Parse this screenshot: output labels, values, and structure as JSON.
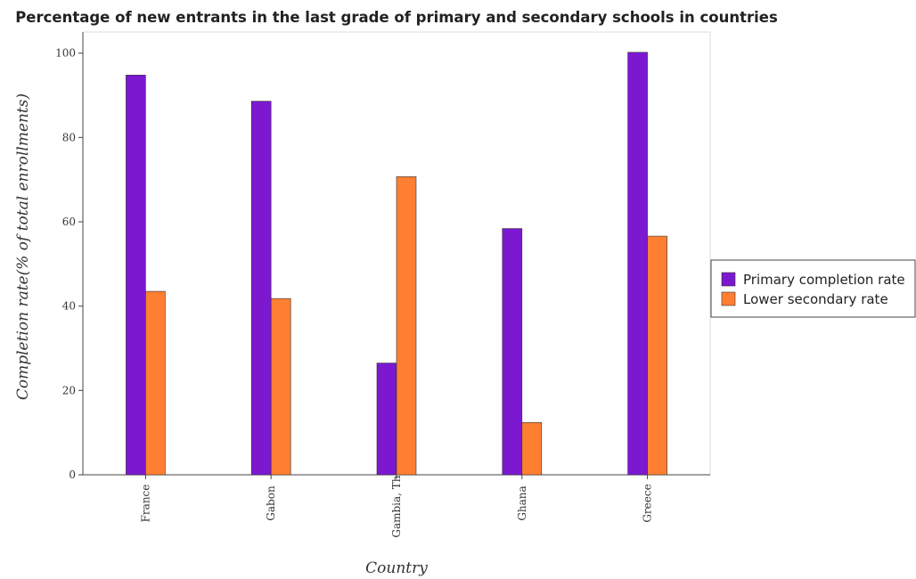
{
  "chart_data": {
    "type": "bar",
    "title": "Percentage of new entrants in the last grade of primary  and secondary schools in countries",
    "xlabel": "Country",
    "ylabel": "Completion rate(% of total enrollments)",
    "categories": [
      "France",
      "Gabon",
      "Gambia, The",
      "Ghana",
      "Greece"
    ],
    "series": [
      {
        "name": "Primary completion rate",
        "color": "#7b18d0",
        "values": [
          94.8,
          88.6,
          26.5,
          58.4,
          100.2
        ]
      },
      {
        "name": "Lower secondary rate",
        "color": "#ff7f32",
        "values": [
          43.5,
          41.8,
          70.7,
          12.4,
          56.6
        ]
      }
    ],
    "ylim": [
      0,
      105
    ],
    "yticks": [
      0,
      20,
      40,
      60,
      80,
      100
    ],
    "legend_position": "right",
    "grid": false
  }
}
